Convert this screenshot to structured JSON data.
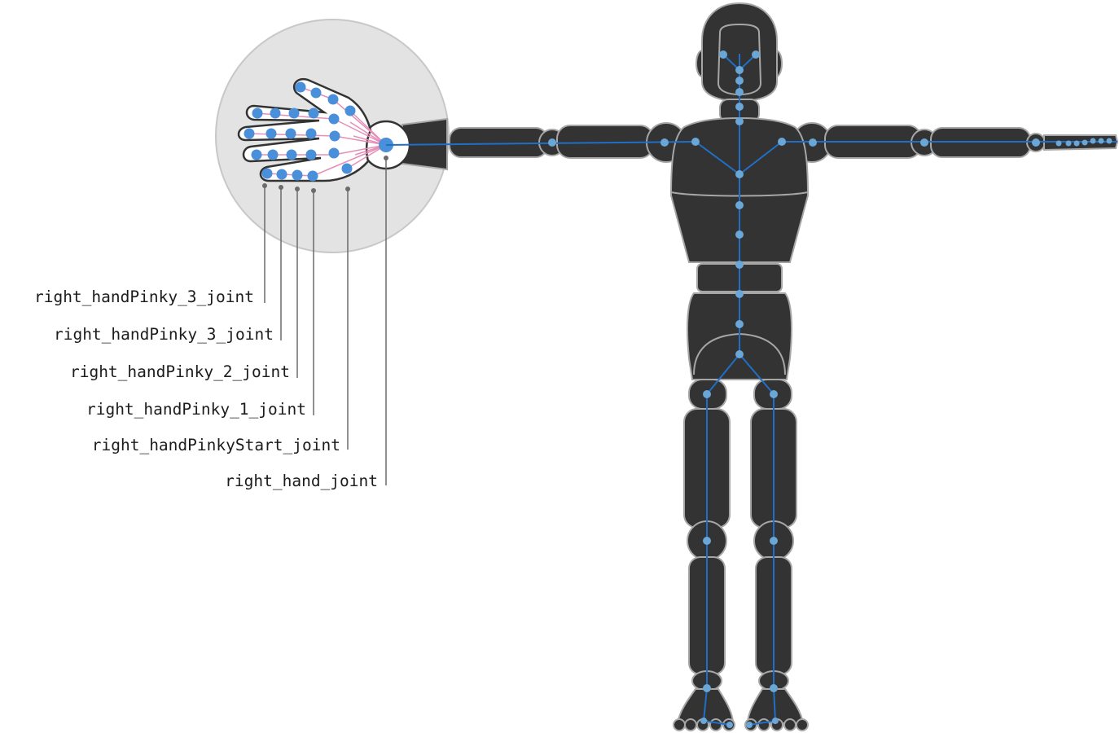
{
  "labels": [
    {
      "text": "right_handPinky_3_joint"
    },
    {
      "text": "right_handPinky_3_joint"
    },
    {
      "text": "right_handPinky_2_joint"
    },
    {
      "text": "right_handPinky_1_joint"
    },
    {
      "text": "right_handPinkyStart_joint"
    },
    {
      "text": "right_hand_joint"
    }
  ],
  "colors": {
    "body": "#333333",
    "outline": "#a6a6a6",
    "bone": "#1f6fc7",
    "joint": "#6aa6d6",
    "hand_bone": "#e58fb8",
    "magnifier": "#e3e3e3"
  }
}
